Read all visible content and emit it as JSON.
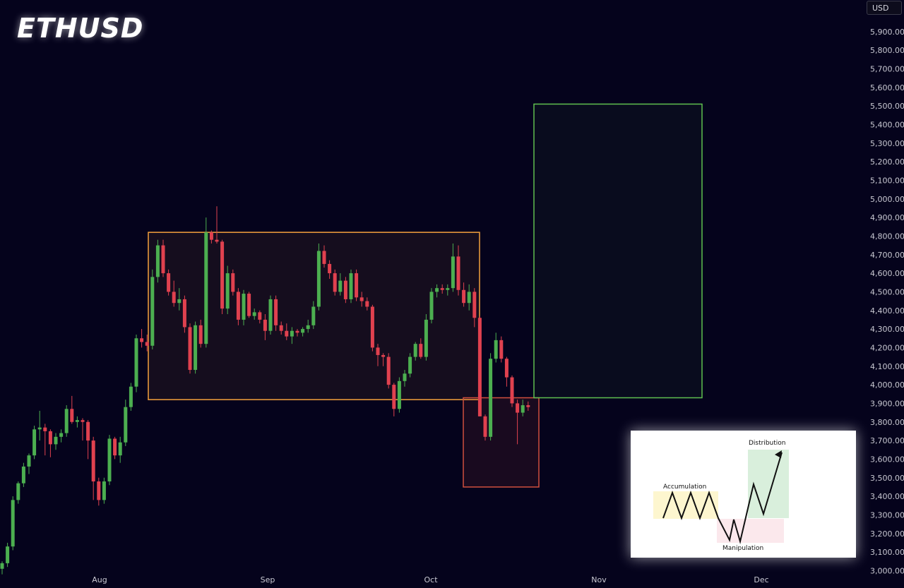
{
  "header": {
    "symbol": "ETHUSD",
    "currency": "USD"
  },
  "colors": {
    "background": "#05031c",
    "bullish": "#4caf50",
    "bearish": "#e0414f",
    "accumulation_box": "#f5a13c",
    "manipulation_box": "#d0503e",
    "distribution_box": "#5fbf4f"
  },
  "chart_data": {
    "type": "candlestick",
    "title": "ETHUSD",
    "ylabel": "USD",
    "ylim": [
      2975,
      5975
    ],
    "x_tick_labels": [
      "Aug",
      "Sep",
      "Oct",
      "Nov",
      "Dec"
    ],
    "y_tick_labels": [
      "3,000.00",
      "3,100.00",
      "3,200.00",
      "3,300.00",
      "3,400.00",
      "3,500.00",
      "3,600.00",
      "3,700.00",
      "3,800.00",
      "3,900.00",
      "4,000.00",
      "4,100.00",
      "4,200.00",
      "4,300.00",
      "4,400.00",
      "4,500.00",
      "4,600.00",
      "4,700.00",
      "4,800.00",
      "4,900.00",
      "5,000.00",
      "5,100.00",
      "5,200.00",
      "5,300.00",
      "5,400.00",
      "5,500.00",
      "5,600.00",
      "5,700.00",
      "5,800.00",
      "5,900.00"
    ],
    "candles_ohlc": [
      [
        3010,
        3050,
        2980,
        3040
      ],
      [
        3040,
        3150,
        3020,
        3130
      ],
      [
        3130,
        3400,
        3110,
        3380
      ],
      [
        3380,
        3480,
        3360,
        3470
      ],
      [
        3470,
        3580,
        3450,
        3560
      ],
      [
        3560,
        3630,
        3520,
        3620
      ],
      [
        3620,
        3780,
        3600,
        3760
      ],
      [
        3760,
        3860,
        3700,
        3770
      ],
      [
        3770,
        3790,
        3620,
        3750
      ],
      [
        3750,
        3760,
        3610,
        3680
      ],
      [
        3680,
        3740,
        3650,
        3720
      ],
      [
        3720,
        3760,
        3690,
        3740
      ],
      [
        3740,
        3890,
        3720,
        3870
      ],
      [
        3870,
        3940,
        3790,
        3800
      ],
      [
        3800,
        3830,
        3770,
        3810
      ],
      [
        3810,
        3820,
        3700,
        3800
      ],
      [
        3800,
        3810,
        3600,
        3700
      ],
      [
        3700,
        3720,
        3380,
        3480
      ],
      [
        3480,
        3500,
        3350,
        3380
      ],
      [
        3380,
        3500,
        3360,
        3480
      ],
      [
        3480,
        3730,
        3460,
        3710
      ],
      [
        3710,
        3720,
        3600,
        3620
      ],
      [
        3620,
        3720,
        3580,
        3690
      ],
      [
        3690,
        3920,
        3670,
        3880
      ],
      [
        3880,
        4010,
        3860,
        3990
      ],
      [
        3990,
        4270,
        3960,
        4250
      ],
      [
        4250,
        4300,
        4200,
        4230
      ],
      [
        4230,
        4270,
        4180,
        4210
      ],
      [
        4210,
        4620,
        4190,
        4580
      ],
      [
        4580,
        4780,
        4550,
        4750
      ],
      [
        4750,
        4780,
        4580,
        4600
      ],
      [
        4600,
        4620,
        4480,
        4500
      ],
      [
        4500,
        4560,
        4420,
        4440
      ],
      [
        4440,
        4520,
        4400,
        4460
      ],
      [
        4460,
        4480,
        4280,
        4310
      ],
      [
        4310,
        4330,
        4060,
        4080
      ],
      [
        4080,
        4340,
        4060,
        4320
      ],
      [
        4320,
        4350,
        4200,
        4220
      ],
      [
        4220,
        4900,
        4200,
        4820
      ],
      [
        4820,
        4830,
        4760,
        4780
      ],
      [
        4780,
        4960,
        4760,
        4770
      ],
      [
        4770,
        4780,
        4380,
        4410
      ],
      [
        4410,
        4640,
        4380,
        4600
      ],
      [
        4600,
        4620,
        4480,
        4500
      ],
      [
        4500,
        4520,
        4320,
        4350
      ],
      [
        4350,
        4510,
        4320,
        4490
      ],
      [
        4490,
        4500,
        4360,
        4370
      ],
      [
        4370,
        4410,
        4350,
        4390
      ],
      [
        4390,
        4400,
        4330,
        4350
      ],
      [
        4350,
        4380,
        4240,
        4290
      ],
      [
        4290,
        4480,
        4270,
        4460
      ],
      [
        4460,
        4480,
        4290,
        4320
      ],
      [
        4320,
        4340,
        4270,
        4290
      ],
      [
        4290,
        4330,
        4240,
        4260
      ],
      [
        4260,
        4310,
        4220,
        4290
      ],
      [
        4290,
        4300,
        4260,
        4280
      ],
      [
        4280,
        4310,
        4260,
        4300
      ],
      [
        4300,
        4350,
        4280,
        4320
      ],
      [
        4320,
        4450,
        4300,
        4420
      ],
      [
        4420,
        4760,
        4400,
        4720
      ],
      [
        4720,
        4750,
        4630,
        4650
      ],
      [
        4650,
        4670,
        4570,
        4600
      ],
      [
        4600,
        4620,
        4480,
        4500
      ],
      [
        4500,
        4600,
        4480,
        4560
      ],
      [
        4560,
        4580,
        4440,
        4460
      ],
      [
        4460,
        4620,
        4440,
        4600
      ],
      [
        4600,
        4620,
        4450,
        4470
      ],
      [
        4470,
        4500,
        4420,
        4450
      ],
      [
        4450,
        4470,
        4400,
        4420
      ],
      [
        4420,
        4430,
        4180,
        4200
      ],
      [
        4200,
        4220,
        4100,
        4160
      ],
      [
        4160,
        4170,
        4100,
        4150
      ],
      [
        4150,
        4170,
        3980,
        4000
      ],
      [
        4000,
        4010,
        3830,
        3870
      ],
      [
        3870,
        4040,
        3850,
        4020
      ],
      [
        4020,
        4080,
        3990,
        4060
      ],
      [
        4060,
        4170,
        4040,
        4150
      ],
      [
        4150,
        4230,
        4130,
        4220
      ],
      [
        4220,
        4250,
        4140,
        4150
      ],
      [
        4150,
        4380,
        4130,
        4350
      ],
      [
        4350,
        4520,
        4330,
        4500
      ],
      [
        4500,
        4540,
        4470,
        4520
      ],
      [
        4520,
        4540,
        4490,
        4510
      ],
      [
        4510,
        4540,
        4480,
        4520
      ],
      [
        4520,
        4760,
        4500,
        4690
      ],
      [
        4690,
        4750,
        4480,
        4510
      ],
      [
        4510,
        4550,
        4420,
        4440
      ],
      [
        4440,
        4540,
        4400,
        4500
      ],
      [
        4500,
        4520,
        4310,
        4360
      ],
      [
        4360,
        4370,
        3830,
        3830
      ],
      [
        3830,
        3840,
        3700,
        3720
      ],
      [
        3720,
        4170,
        3700,
        4140
      ],
      [
        4140,
        4280,
        4120,
        4240
      ],
      [
        4240,
        4260,
        4120,
        4140
      ],
      [
        4140,
        4150,
        3990,
        4040
      ],
      [
        4040,
        4050,
        3880,
        3900
      ],
      [
        3900,
        3920,
        3680,
        3850
      ],
      [
        3850,
        3920,
        3830,
        3890
      ],
      [
        3890,
        3910,
        3860,
        3880
      ]
    ],
    "annotations": [
      {
        "name": "Accumulation",
        "type": "rectangle",
        "x_range": [
          "2025-08-13",
          "2025-10-10"
        ],
        "y_range": [
          3920,
          4820
        ]
      },
      {
        "name": "Manipulation",
        "type": "rectangle",
        "x_range": [
          "2025-10-09",
          "2025-10-23"
        ],
        "y_range": [
          3450,
          3930
        ]
      },
      {
        "name": "Distribution",
        "type": "rectangle",
        "x_range": [
          "2025-10-23",
          "2025-11-23"
        ],
        "y_range": [
          3930,
          5510
        ]
      }
    ]
  },
  "inset": {
    "accumulation_label": "Accumulation",
    "manipulation_label": "Manipulation",
    "distribution_label": "Distribution"
  }
}
